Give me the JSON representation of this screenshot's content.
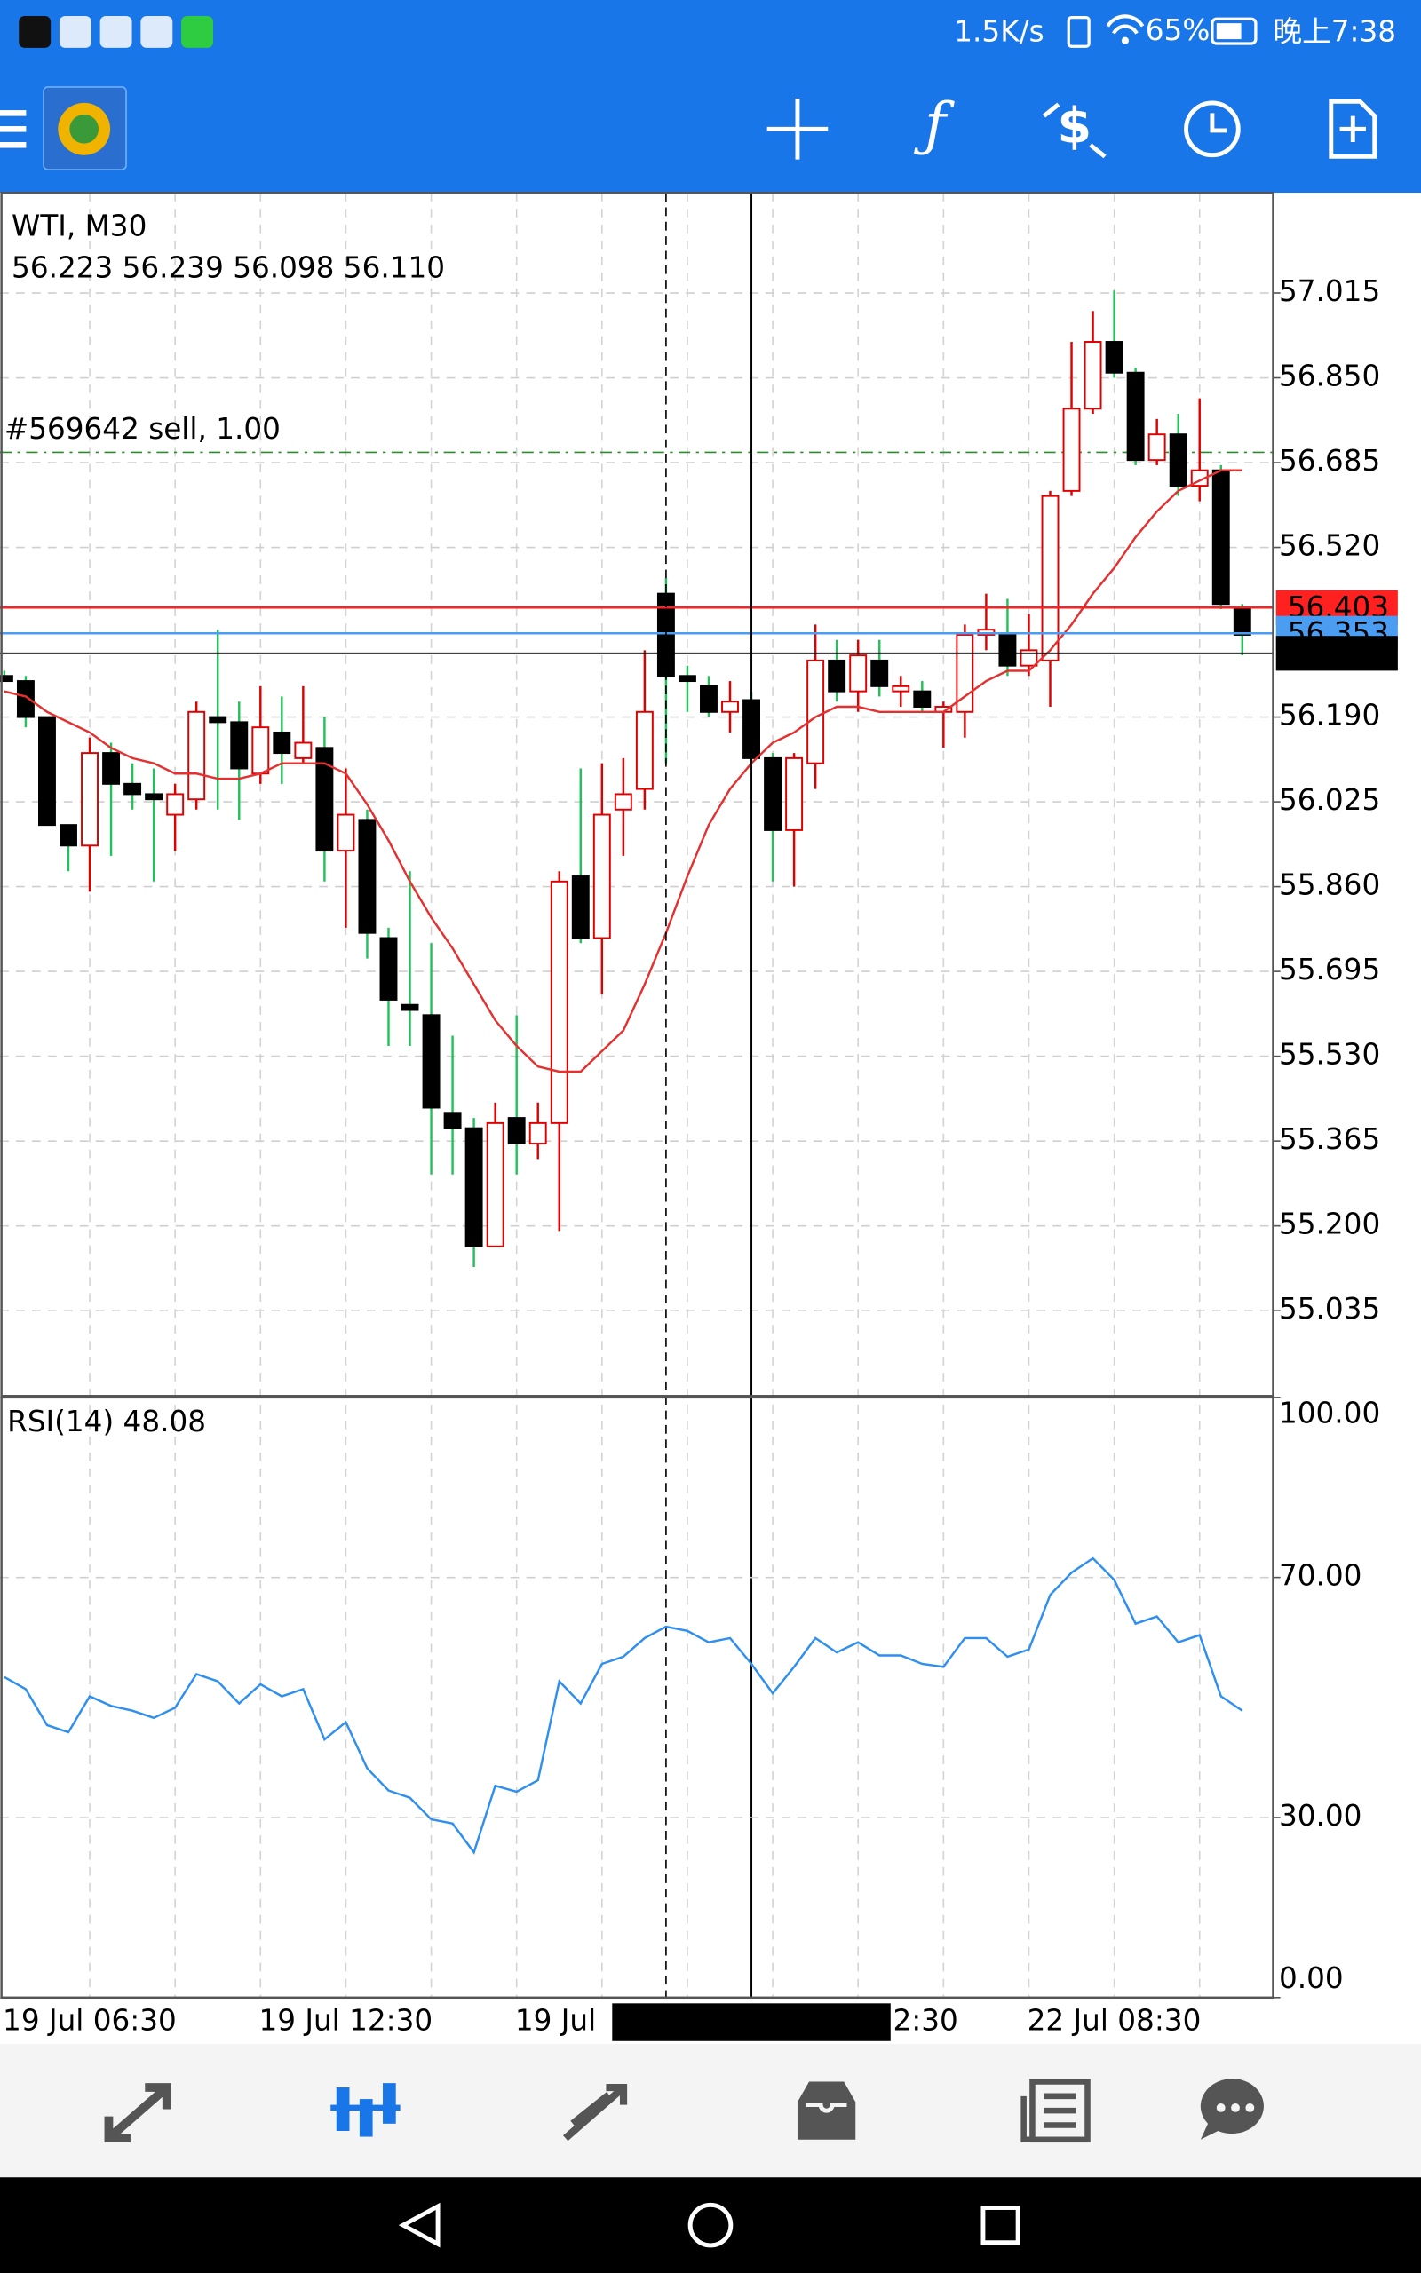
{
  "status_bar": {
    "network_speed": "1.5K/s",
    "battery": "65%",
    "time": "晚上7:38"
  },
  "chart_data": [
    {
      "type": "candlestick",
      "title": "WTI, M30",
      "ohlc_text": "56.223 56.239 56.098 56.110",
      "categories": [
        null,
        null,
        null,
        null,
        "19 Jul 06:30",
        null,
        null,
        null,
        null,
        null,
        null,
        null,
        null,
        null,
        null,
        null,
        "19 Jul 12:30",
        null,
        null,
        null,
        null,
        null,
        null,
        null,
        null,
        null,
        null,
        null,
        "19 Jul",
        null,
        null,
        null,
        null,
        null,
        null,
        null,
        null,
        null,
        null,
        null,
        "2:30",
        null,
        null,
        null,
        null,
        null,
        null,
        null,
        null,
        null,
        null,
        null,
        "22 Jul 08:30",
        null,
        null,
        null,
        null,
        null,
        null
      ],
      "open": [
        56.27,
        56.26,
        56.19,
        55.98,
        55.94,
        56.12,
        56.06,
        56.04,
        56.0,
        56.03,
        56.19,
        56.18,
        56.08,
        56.16,
        56.11,
        56.13,
        55.93,
        55.99,
        55.76,
        55.63,
        55.61,
        55.42,
        55.39,
        55.16,
        55.41,
        55.36,
        55.4,
        55.88,
        55.76,
        56.01,
        56.05,
        56.43,
        56.27,
        56.25,
        56.2,
        56.223,
        56.11,
        55.97,
        56.1,
        56.3,
        56.24,
        56.3,
        56.24,
        56.24,
        56.2,
        56.2,
        56.35,
        56.35,
        56.29,
        56.3,
        56.63,
        56.79,
        56.92,
        56.86,
        56.69,
        56.74,
        56.64,
        56.67,
        56.4
      ],
      "high": [
        56.28,
        56.27,
        56.19,
        55.98,
        56.15,
        56.14,
        56.1,
        56.09,
        56.06,
        56.22,
        56.36,
        56.22,
        56.25,
        56.23,
        56.25,
        56.19,
        56.09,
        56.01,
        55.78,
        55.89,
        55.75,
        55.57,
        55.41,
        55.44,
        55.61,
        55.44,
        55.89,
        56.09,
        56.1,
        56.11,
        56.32,
        56.46,
        56.29,
        56.27,
        56.26,
        56.239,
        56.12,
        56.12,
        56.37,
        56.34,
        56.34,
        56.34,
        56.27,
        56.26,
        56.22,
        56.37,
        56.43,
        56.42,
        56.39,
        56.63,
        56.92,
        56.98,
        57.02,
        56.87,
        56.77,
        56.78,
        56.81,
        56.68,
        56.41
      ],
      "low": [
        56.26,
        56.17,
        55.98,
        55.89,
        55.85,
        55.92,
        56.01,
        55.87,
        55.93,
        56.01,
        56.01,
        55.99,
        56.06,
        56.06,
        56.1,
        55.87,
        55.78,
        55.72,
        55.55,
        55.55,
        55.3,
        55.3,
        55.12,
        55.16,
        55.3,
        55.33,
        55.19,
        55.75,
        55.65,
        55.92,
        56.01,
        56.1,
        56.2,
        56.19,
        56.16,
        56.098,
        55.87,
        55.86,
        56.05,
        56.22,
        56.2,
        56.23,
        56.21,
        56.2,
        56.13,
        56.15,
        56.32,
        56.27,
        56.27,
        56.21,
        56.62,
        56.78,
        56.85,
        56.68,
        56.68,
        56.62,
        56.61,
        56.4,
        56.31
      ],
      "close": [
        56.26,
        56.19,
        55.98,
        55.94,
        56.12,
        56.06,
        56.04,
        56.03,
        56.04,
        56.2,
        56.18,
        56.09,
        56.17,
        56.12,
        56.14,
        55.93,
        56.0,
        55.77,
        55.64,
        55.62,
        55.43,
        55.39,
        55.16,
        55.4,
        55.36,
        55.4,
        55.87,
        55.76,
        56.0,
        56.04,
        56.2,
        56.27,
        56.26,
        56.2,
        56.22,
        56.11,
        55.97,
        56.11,
        56.3,
        56.24,
        56.31,
        56.25,
        56.25,
        56.21,
        56.21,
        56.35,
        56.36,
        56.29,
        56.32,
        56.62,
        56.79,
        56.92,
        56.86,
        56.69,
        56.74,
        56.64,
        56.67,
        56.41,
        56.35
      ],
      "up_color": "#e00000",
      "down_color": "#000000",
      "down_wick_color": "#22c25a",
      "overlay": {
        "color": "#e53030",
        "values": [
          56.24,
          56.23,
          56.2,
          56.18,
          56.16,
          56.13,
          56.11,
          56.1,
          56.08,
          56.08,
          56.07,
          56.07,
          56.08,
          56.1,
          56.1,
          56.1,
          56.08,
          56.02,
          55.95,
          55.87,
          55.8,
          55.74,
          55.67,
          55.6,
          55.55,
          55.51,
          55.5,
          55.5,
          55.54,
          55.58,
          55.67,
          55.77,
          55.88,
          55.98,
          56.05,
          56.1,
          56.14,
          56.16,
          56.19,
          56.21,
          56.21,
          56.2,
          56.2,
          56.2,
          56.2,
          56.23,
          56.26,
          56.28,
          56.28,
          56.32,
          56.37,
          56.43,
          56.48,
          56.54,
          56.59,
          56.63,
          56.65,
          56.67,
          56.67
        ]
      },
      "ylim": [
        54.869,
        57.21
      ],
      "yticks": [
        57.015,
        {
          "value": 56.85,
          "label": "56.850"
        },
        56.685,
        {
          "value": 56.52,
          "label": "56.520"
        },
        {
          "value": 56.19,
          "label": "56.190"
        },
        56.025,
        {
          "value": 55.86,
          "label": "55.860"
        },
        55.695,
        {
          "value": 55.53,
          "label": "55.530"
        },
        55.365,
        {
          "value": 55.2,
          "label": "55.200"
        },
        55.035
      ],
      "grid": true,
      "order_line": {
        "text": "#569642 sell, 1.00",
        "value": 56.705,
        "color": "#2e8b2e"
      },
      "levels": [
        {
          "value": 56.403,
          "color": "#ff2020"
        },
        {
          "value": 56.353,
          "color": "#4a9df0"
        }
      ],
      "crosshair": {
        "time": "2019.07.22 02:00",
        "price": 56.314
      }
    },
    {
      "type": "line",
      "title": "RSI(14) 48.08",
      "color": "#2f8ff0",
      "values": [
        53.4,
        51.4,
        45.4,
        44.2,
        50.2,
        48.6,
        47.8,
        46.6,
        48.3,
        53.9,
        52.7,
        49.0,
        52.2,
        50.2,
        51.4,
        43.0,
        45.9,
        38.2,
        34.5,
        33.3,
        29.7,
        29.0,
        24.2,
        35.3,
        34.3,
        36.2,
        52.7,
        49.0,
        55.6,
        56.8,
        59.9,
        61.8,
        61.1,
        59.2,
        59.9,
        55.6,
        50.7,
        55.1,
        59.9,
        57.5,
        59.2,
        57.0,
        57.0,
        55.6,
        55.1,
        59.9,
        59.9,
        56.8,
        58.0,
        67.1,
        70.8,
        73.2,
        69.6,
        62.3,
        63.5,
        59.2,
        60.4,
        50.2,
        47.8
      ],
      "ylim": [
        0,
        100
      ],
      "yticks": [
        {
          "value": 100,
          "label": "100.00"
        },
        {
          "value": 70,
          "label": "70.00"
        },
        {
          "value": 30,
          "label": "30.00"
        },
        {
          "value": 0,
          "label": "0.00"
        }
      ],
      "grid": true
    }
  ]
}
